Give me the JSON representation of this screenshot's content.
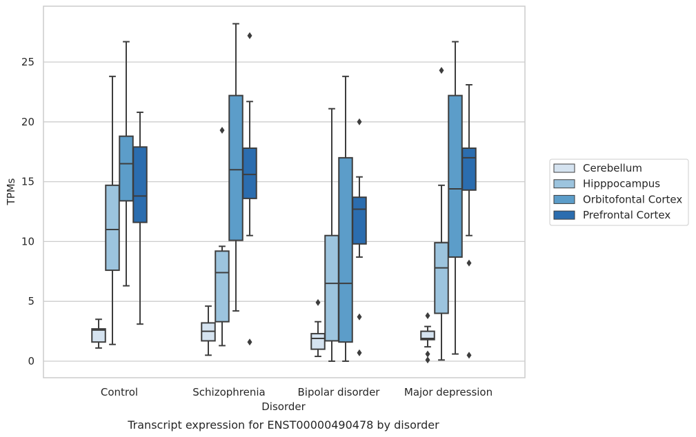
{
  "chart_data": {
    "type": "box",
    "xlabel": "Disorder",
    "ylabel": "TPMs",
    "caption": "Transcript expression for ENST00000490478 by disorder",
    "ylim": [
      -1.3,
      29.3
    ],
    "yticks": [
      0,
      5,
      10,
      15,
      20,
      25
    ],
    "grid": "horizontal",
    "legend_position": "right",
    "categories": [
      "Control",
      "Schizophrenia",
      "Bipolar disorder",
      "Major depression"
    ],
    "series": [
      {
        "name": "Cerebellum",
        "color": "#d5e3f0",
        "boxes": [
          {
            "whisker_low": 1.1,
            "q1": 1.6,
            "median": 2.6,
            "q3": 2.7,
            "whisker_high": 3.5,
            "outliers": []
          },
          {
            "whisker_low": 0.5,
            "q1": 1.7,
            "median": 2.5,
            "q3": 3.2,
            "whisker_high": 4.6,
            "outliers": []
          },
          {
            "whisker_low": 0.4,
            "q1": 1.0,
            "median": 1.9,
            "q3": 2.3,
            "whisker_high": 3.3,
            "outliers": [
              4.9
            ]
          },
          {
            "whisker_low": 1.2,
            "q1": 1.8,
            "median": 1.9,
            "q3": 2.5,
            "whisker_high": 2.9,
            "outliers": [
              3.8,
              0.6,
              0.1
            ]
          }
        ]
      },
      {
        "name": "Hipppocampus",
        "color": "#9cc4de",
        "boxes": [
          {
            "whisker_low": 1.4,
            "q1": 7.6,
            "median": 11.0,
            "q3": 14.7,
            "whisker_high": 23.8,
            "outliers": []
          },
          {
            "whisker_low": 1.3,
            "q1": 3.3,
            "median": 7.4,
            "q3": 9.2,
            "whisker_high": 9.6,
            "outliers": [
              19.3
            ]
          },
          {
            "whisker_low": 0.0,
            "q1": 1.7,
            "median": 6.5,
            "q3": 10.5,
            "whisker_high": 21.1,
            "outliers": []
          },
          {
            "whisker_low": 0.1,
            "q1": 4.0,
            "median": 7.8,
            "q3": 9.9,
            "whisker_high": 14.7,
            "outliers": [
              24.3
            ]
          }
        ]
      },
      {
        "name": "Orbitofontal Cortex",
        "color": "#5c9dc9",
        "boxes": [
          {
            "whisker_low": 6.3,
            "q1": 13.4,
            "median": 16.5,
            "q3": 18.8,
            "whisker_high": 26.7,
            "outliers": []
          },
          {
            "whisker_low": 4.2,
            "q1": 10.1,
            "median": 16.0,
            "q3": 22.2,
            "whisker_high": 28.2,
            "outliers": []
          },
          {
            "whisker_low": 0.0,
            "q1": 1.6,
            "median": 6.5,
            "q3": 17.0,
            "whisker_high": 23.8,
            "outliers": []
          },
          {
            "whisker_low": 0.6,
            "q1": 8.7,
            "median": 14.4,
            "q3": 22.2,
            "whisker_high": 26.7,
            "outliers": []
          }
        ]
      },
      {
        "name": "Prefrontal Cortex",
        "color": "#2b6daf",
        "boxes": [
          {
            "whisker_low": 3.1,
            "q1": 11.6,
            "median": 13.8,
            "q3": 17.9,
            "whisker_high": 20.8,
            "outliers": []
          },
          {
            "whisker_low": 10.5,
            "q1": 13.6,
            "median": 15.6,
            "q3": 17.8,
            "whisker_high": 21.7,
            "outliers": [
              27.2,
              1.6
            ]
          },
          {
            "whisker_low": 8.7,
            "q1": 9.8,
            "median": 12.7,
            "q3": 13.7,
            "whisker_high": 15.4,
            "outliers": [
              20.0,
              3.7,
              0.7
            ]
          },
          {
            "whisker_low": 10.5,
            "q1": 14.3,
            "median": 17.0,
            "q3": 17.8,
            "whisker_high": 23.1,
            "outliers": [
              8.2,
              0.5
            ]
          }
        ]
      }
    ]
  }
}
